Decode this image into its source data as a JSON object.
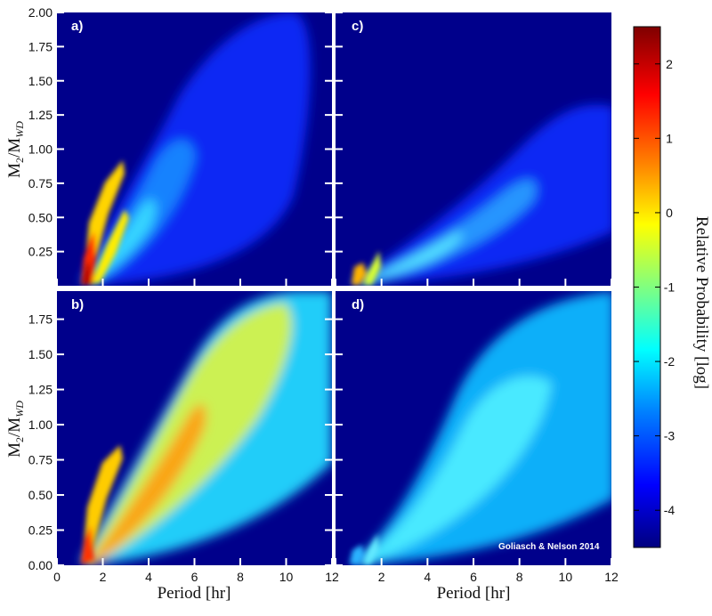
{
  "chart_data": {
    "type": "heatmap",
    "colorbar": {
      "label": "Relative Probability [log]",
      "ticks": [
        "2",
        "1",
        "0",
        "-1",
        "-2",
        "-3",
        "-4"
      ],
      "range": [
        -4.5,
        2.5
      ],
      "colors": [
        "#00007f",
        "#0000ff",
        "#0080ff",
        "#00ffff",
        "#80ff80",
        "#ffff00",
        "#ff8000",
        "#ff0000",
        "#7f0000"
      ]
    },
    "background_color": "#00008b",
    "xlabel": "Period [hr]",
    "ylabel": "M2/MWD",
    "xlim": [
      0,
      12
    ],
    "top_ylim": [
      0,
      2.0
    ],
    "bottom_ylim": [
      0,
      1.95
    ],
    "x_tick_labels": [
      "0",
      "2",
      "4",
      "6",
      "8",
      "10",
      "12"
    ],
    "top_y_tick_labels": [
      "0.25",
      "0.50",
      "0.75",
      "1.00",
      "1.25",
      "1.50",
      "1.75",
      "2.00"
    ],
    "bottom_y_tick_labels": [
      "0.00",
      "0.25",
      "0.50",
      "0.75",
      "1.00",
      "1.25",
      "1.50",
      "1.75"
    ],
    "credit": "Goliasch & Nelson 2014",
    "panels": [
      {
        "id": "a",
        "label": "a)",
        "position": "top-left",
        "spikes": [
          {
            "x": 1.3,
            "y": 0.3,
            "value": 2.2
          },
          {
            "x": 2.3,
            "y": 0.9,
            "value": 0.3
          },
          {
            "x": 2.9,
            "y": 0.6,
            "value": -0.2
          }
        ],
        "plume": {
          "x_end": 10.0,
          "y_top": 2.0,
          "value": -3.2
        }
      },
      {
        "id": "c",
        "label": "c)",
        "position": "top-right",
        "spikes": [
          {
            "x": 1.3,
            "y": 0.15,
            "value": 0.1
          },
          {
            "x": 1.9,
            "y": 0.25,
            "value": -0.2
          }
        ],
        "plume": {
          "x_end": 10.5,
          "y_top": 1.0,
          "value": -2.5
        }
      },
      {
        "id": "b",
        "label": "b)",
        "position": "bottom-left",
        "spikes": [
          {
            "x": 1.3,
            "y": 0.2,
            "value": 1.8
          },
          {
            "x": 2.3,
            "y": 0.8,
            "value": 0.1
          },
          {
            "x": 3.2,
            "y": 0.9,
            "value": -0.1
          }
        ],
        "plume": {
          "x_end": 11.8,
          "y_top": 1.95,
          "value": -0.3
        }
      },
      {
        "id": "d",
        "label": "d)",
        "position": "bottom-right",
        "spikes": [
          {
            "x": 1.3,
            "y": 0.1,
            "value": -1.5
          },
          {
            "x": 1.9,
            "y": 0.2,
            "value": -1.8
          }
        ],
        "plume": {
          "x_end": 12.0,
          "y_top": 1.95,
          "value": -1.6
        }
      }
    ]
  }
}
